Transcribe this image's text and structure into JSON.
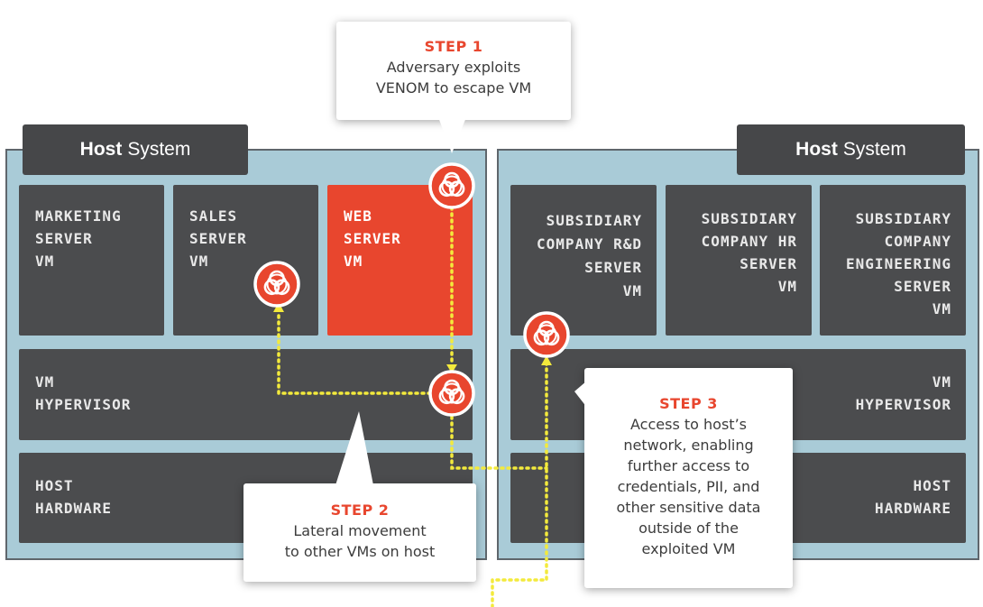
{
  "left_host": {
    "title_bold": "Host",
    "title_rest": "System",
    "vms": [
      {
        "label": "MARKETING\nSERVER\nVM"
      },
      {
        "label": "SALES\nSERVER\nVM"
      },
      {
        "label": "WEB\nSERVER\nVM"
      }
    ],
    "hypervisor": "VM\nHYPERVISOR",
    "hardware": "HOST\nHARDWARE"
  },
  "right_host": {
    "title_bold": "Host",
    "title_rest": "System",
    "vms": [
      {
        "label": "SUBSIDIARY\nCOMPANY R&D\nSERVER\nVM"
      },
      {
        "label": "SUBSIDIARY\nCOMPANY HR\nSERVER\nVM"
      },
      {
        "label": "SUBSIDIARY\nCOMPANY\nENGINEERING\nSERVER\nVM"
      }
    ],
    "hypervisor": "VM\nHYPERVISOR",
    "hardware": "HOST\nHARDWARE"
  },
  "steps": [
    {
      "title": "STEP 1",
      "text": "Adversary exploits\nVENOM to escape VM"
    },
    {
      "title": "STEP 2",
      "text": "Lateral movement\nto other VMs on host"
    },
    {
      "title": "STEP 3",
      "text": "Access to host’s\nnetwork, enabling\nfurther access to\ncredentials, PII, and\nother sensitive data\noutside of the\nexploited VM"
    }
  ],
  "icons": {
    "threat": "biohazard-icon"
  },
  "colors": {
    "host_bg": "#a9cbd7",
    "box": "#4b4c4e",
    "tab": "#464749",
    "accent": "#e8462e",
    "path": "#f3ea3c"
  }
}
